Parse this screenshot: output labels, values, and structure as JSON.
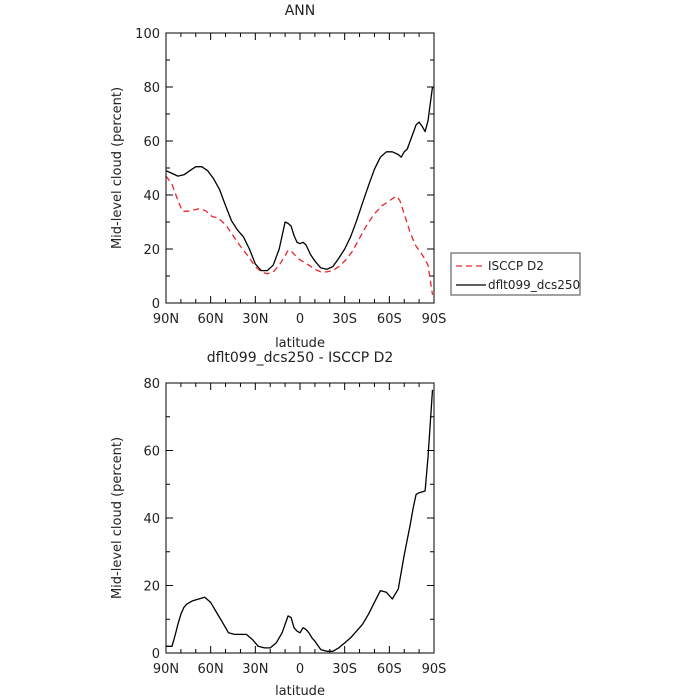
{
  "chart_data": [
    {
      "type": "line",
      "title": "ANN",
      "xlabel": "latitude",
      "ylabel": "Mid-level cloud (percent)",
      "x_ticks": [
        "90N",
        "60N",
        "30N",
        "0",
        "30S",
        "60S",
        "90S"
      ],
      "xlim": [
        -90,
        90
      ],
      "ylim": [
        0,
        100
      ],
      "y_ticks": [
        0,
        20,
        40,
        60,
        80,
        100
      ],
      "grid": false,
      "legend": "right",
      "series": [
        {
          "name": "ISCCP D2",
          "color": "#e8262b",
          "dash": "dashed",
          "x": [
            -90,
            -86,
            -82,
            -79,
            -75,
            -71,
            -67,
            -63,
            -59,
            -55,
            -50,
            -45,
            -40,
            -35,
            -30,
            -26,
            -22,
            -18,
            -14,
            -10,
            -8,
            -6,
            -3,
            0,
            3,
            6,
            10,
            14,
            18,
            22,
            26,
            30,
            35,
            40,
            45,
            50,
            55,
            59,
            63,
            65,
            67,
            70,
            74,
            78,
            82,
            86,
            89
          ],
          "y": [
            47,
            44,
            38,
            34,
            34,
            34.5,
            35,
            34,
            32,
            31.5,
            29,
            25,
            21,
            17.5,
            13.5,
            11.5,
            10.8,
            11.5,
            14,
            17.5,
            19.5,
            19.3,
            17.5,
            16,
            15,
            14,
            12.5,
            11.5,
            11.5,
            12,
            13.5,
            15.5,
            19,
            24,
            29,
            33,
            36,
            37.5,
            39,
            39.5,
            38,
            33,
            26,
            21,
            18,
            14,
            3
          ]
        },
        {
          "name": "dflt099_dcs250",
          "color": "#000000",
          "dash": "solid",
          "x": [
            -90,
            -86,
            -82,
            -78,
            -74,
            -70,
            -66,
            -62,
            -58,
            -54,
            -50,
            -46,
            -42,
            -38,
            -34,
            -30,
            -26,
            -22,
            -18,
            -14,
            -10,
            -8,
            -6,
            -4,
            -2,
            0,
            2,
            4,
            7,
            10,
            14,
            18,
            22,
            26,
            30,
            34,
            38,
            42,
            46,
            50,
            54,
            58,
            62,
            66,
            68,
            70,
            72,
            74,
            76,
            78,
            80,
            82,
            84,
            86,
            89
          ],
          "y": [
            49,
            48,
            47,
            47.5,
            49,
            50.5,
            50.5,
            49,
            46,
            42,
            36,
            30.5,
            27,
            24.5,
            20,
            14.5,
            12,
            12,
            14,
            20,
            30,
            29.5,
            28.5,
            25,
            22.5,
            22,
            22.5,
            21.5,
            18,
            15.5,
            13,
            12.5,
            13.5,
            16.5,
            20,
            24.5,
            30.5,
            37,
            43.5,
            49.5,
            54,
            56,
            56,
            55,
            54,
            56,
            57,
            60,
            63,
            66,
            67,
            65.5,
            63.5,
            67.5,
            80
          ]
        }
      ]
    },
    {
      "type": "line",
      "title": "dflt099_dcs250 - ISCCP D2",
      "xlabel": "latitude",
      "ylabel": "Mid-level cloud (percent)",
      "x_ticks": [
        "90N",
        "60N",
        "30N",
        "0",
        "30S",
        "60S",
        "90S"
      ],
      "xlim": [
        -90,
        90
      ],
      "ylim": [
        0,
        80
      ],
      "y_ticks": [
        0,
        20,
        40,
        60,
        80
      ],
      "grid": false,
      "series": [
        {
          "color": "#000000",
          "dash": "solid",
          "x": [
            -90,
            -86,
            -84,
            -82,
            -80,
            -78,
            -76,
            -72,
            -68,
            -64,
            -60,
            -56,
            -52,
            -48,
            -44,
            -40,
            -36,
            -32,
            -28,
            -24,
            -20,
            -16,
            -12,
            -8,
            -6,
            -4,
            -2,
            0,
            2,
            4,
            6,
            8,
            10,
            14,
            18,
            22,
            26,
            30,
            34,
            38,
            42,
            46,
            50,
            54,
            58,
            62,
            66,
            70,
            74,
            76,
            78,
            80,
            84,
            86,
            89
          ],
          "y": [
            2,
            2,
            5,
            8.5,
            11.5,
            13.5,
            14.5,
            15.5,
            16,
            16.5,
            15,
            12,
            9,
            6,
            5.5,
            5.5,
            5.5,
            4,
            2,
            1.5,
            1.5,
            3,
            6,
            11,
            10.5,
            7.5,
            6.5,
            6,
            7.5,
            7,
            6,
            4.5,
            3.5,
            1,
            0.5,
            0.5,
            1.5,
            3,
            4.5,
            6.5,
            8.5,
            11.5,
            15,
            18.5,
            18,
            16,
            19,
            29,
            38,
            43,
            47,
            47.5,
            48,
            58,
            78
          ]
        }
      ]
    }
  ]
}
